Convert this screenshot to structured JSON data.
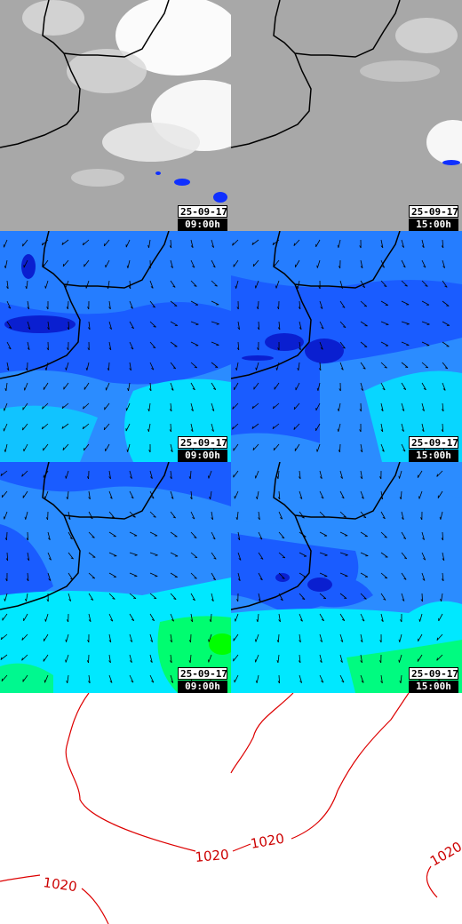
{
  "colors": {
    "cloud_bg": "#a8a8a8",
    "cloud_white": "#ffffff",
    "rain": "#1030ff",
    "wind_dark": "#0a1fd0",
    "wind_blue": "#1a5cff",
    "wind_light": "#2b8cff",
    "wind_cyan": "#00f0ff",
    "wind_green": "#00ff60",
    "coast": "#000000",
    "isobar": "#dd0000"
  },
  "rows": [
    {
      "layer": "cloud",
      "panels": [
        {
          "date": "25-09-17",
          "time": "09:00h"
        },
        {
          "date": "25-09-17",
          "time": "15:00h"
        }
      ]
    },
    {
      "layer": "wind",
      "panels": [
        {
          "date": "25-09-17",
          "time": "09:00h"
        },
        {
          "date": "25-09-17",
          "time": "15:00h"
        }
      ]
    },
    {
      "layer": "wind-gust",
      "panels": [
        {
          "date": "25-09-17",
          "time": "09:00h"
        },
        {
          "date": "25-09-17",
          "time": "15:00h"
        }
      ]
    }
  ],
  "isobars": {
    "labels": [
      "1020",
      "1020",
      "1020",
      "1020"
    ]
  }
}
